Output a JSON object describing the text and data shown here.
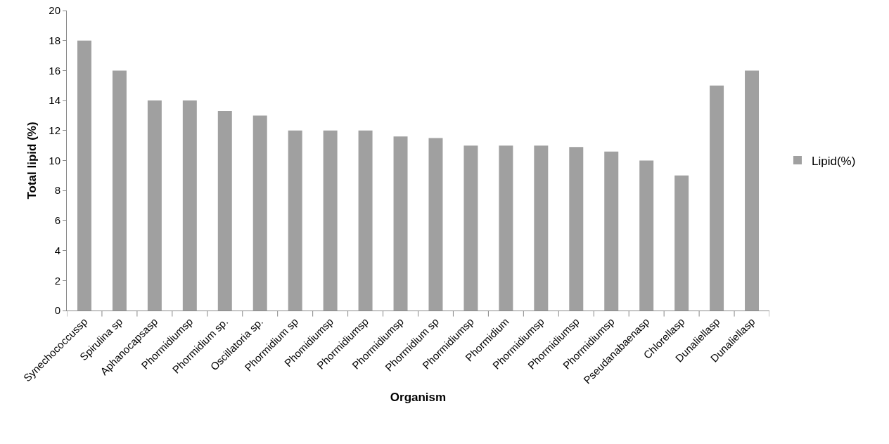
{
  "chart_data": {
    "type": "bar",
    "xlabel": "Organism",
    "ylabel": "Total lipid (%)",
    "categories": [
      "Synechococcussp",
      "Spirulina sp",
      "Aphanocapsasp",
      "Phormidiumsp",
      "Phormidium sp.",
      "Oscillatoria sp.",
      "Phormidium sp",
      "Phomidiumsp",
      "Phormidiumsp",
      "Phormidiumsp",
      "Phormidium sp",
      "Phormidiumsp",
      "Phormidium",
      "Phormidiumsp",
      "Phormidiumsp",
      "Phormidiumsp",
      "Pseudanabaenasp",
      "Chlorellasp",
      "Dunaliellasp",
      "Dunaliellasp"
    ],
    "series": [
      {
        "name": "Lipid(%)",
        "color": "#a0a0a0",
        "values": [
          18,
          16,
          14,
          14,
          13.3,
          13,
          12,
          12,
          12,
          11.6,
          11.5,
          11,
          11,
          11,
          10.9,
          10.6,
          10,
          9,
          15,
          16
        ]
      }
    ],
    "ylim": [
      0,
      20
    ],
    "yticks": [
      0,
      2,
      4,
      6,
      8,
      10,
      12,
      14,
      16,
      18,
      20
    ],
    "grid": false,
    "legend": "right"
  }
}
